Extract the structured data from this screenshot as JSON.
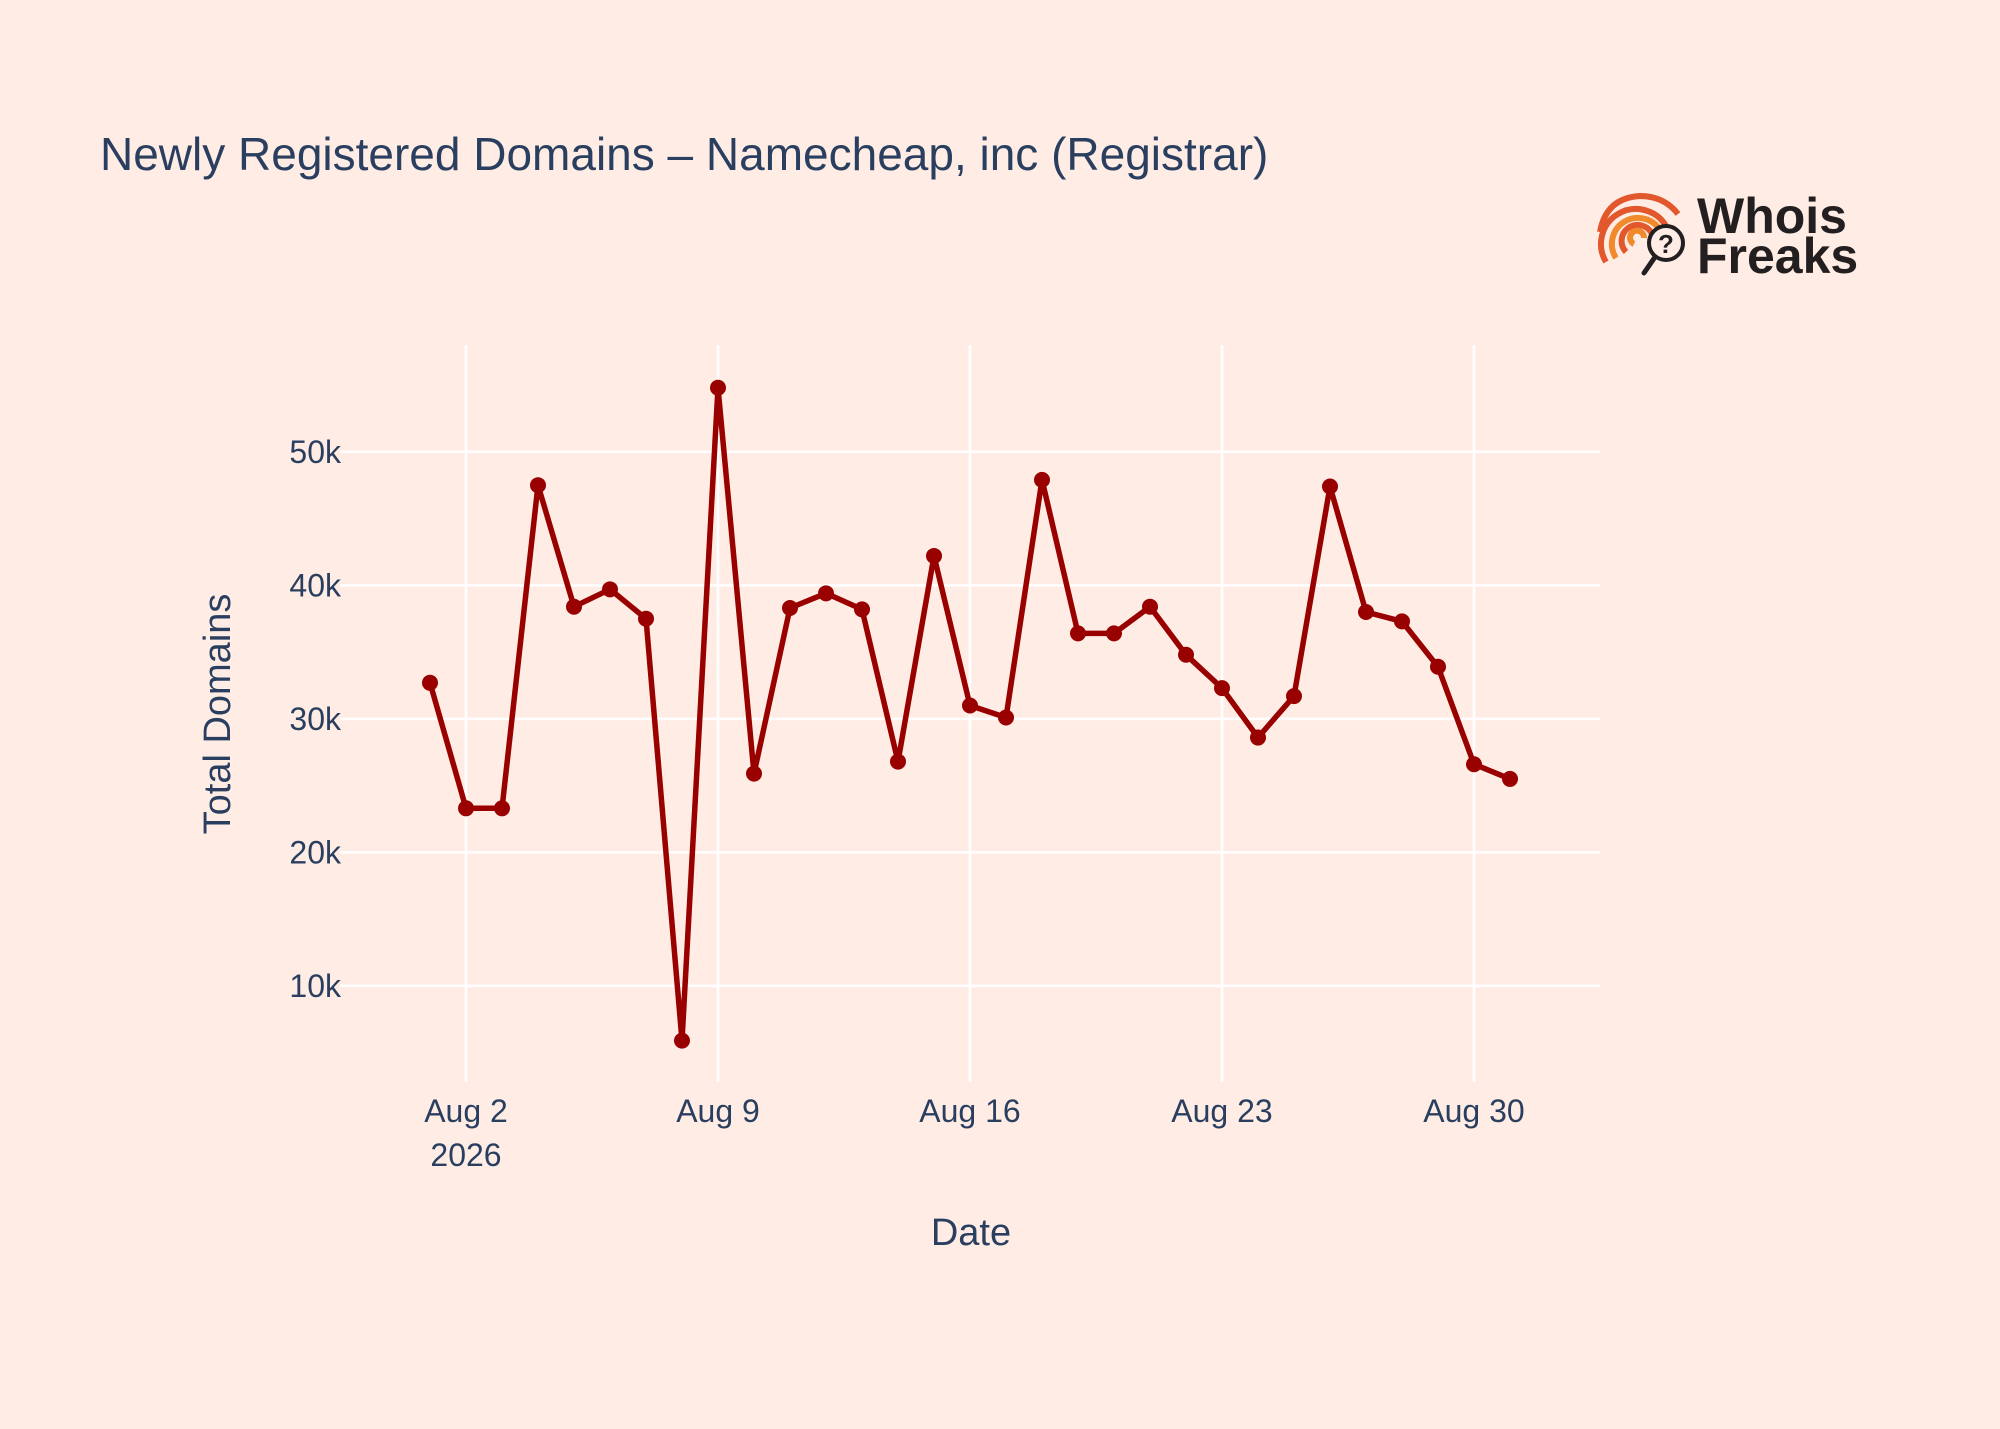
{
  "chart_data": {
    "type": "line",
    "title": "Newly Registered Domains – Namecheap, inc (Registrar)",
    "xlabel": "Date",
    "ylabel": "Total Domains",
    "x_ticks": [
      {
        "date": "2026-08-02",
        "label": "Aug 2",
        "sublabel": "2026"
      },
      {
        "date": "2026-08-09",
        "label": "Aug 9",
        "sublabel": ""
      },
      {
        "date": "2026-08-16",
        "label": "Aug 16",
        "sublabel": ""
      },
      {
        "date": "2026-08-23",
        "label": "Aug 23",
        "sublabel": ""
      },
      {
        "date": "2026-08-30",
        "label": "Aug 30",
        "sublabel": ""
      }
    ],
    "y_ticks": [
      {
        "value": 10000,
        "label": "10k"
      },
      {
        "value": 20000,
        "label": "20k"
      },
      {
        "value": 30000,
        "label": "30k"
      },
      {
        "value": 40000,
        "label": "40k"
      },
      {
        "value": 50000,
        "label": "50k"
      }
    ],
    "xlim": [
      "2026-07-29T12:00",
      "2026-09-02T12:00"
    ],
    "ylim": [
      2800,
      58000
    ],
    "grid": true,
    "series": [
      {
        "color": "#990000",
        "x": [
          "2026-08-01",
          "2026-08-02",
          "2026-08-03",
          "2026-08-04",
          "2026-08-05",
          "2026-08-06",
          "2026-08-07",
          "2026-08-08",
          "2026-08-09",
          "2026-08-10",
          "2026-08-11",
          "2026-08-12",
          "2026-08-13",
          "2026-08-14",
          "2026-08-15",
          "2026-08-16",
          "2026-08-17",
          "2026-08-18",
          "2026-08-19",
          "2026-08-20",
          "2026-08-21",
          "2026-08-22",
          "2026-08-23",
          "2026-08-24",
          "2026-08-25",
          "2026-08-26",
          "2026-08-27",
          "2026-08-28",
          "2026-08-29",
          "2026-08-30",
          "2026-08-31"
        ],
        "y": [
          32700,
          23300,
          23300,
          47500,
          38400,
          39700,
          37500,
          5900,
          54800,
          25900,
          38300,
          39400,
          38200,
          26800,
          42200,
          31000,
          30100,
          47900,
          36400,
          36400,
          38400,
          34800,
          32300,
          28600,
          31700,
          47400,
          38000,
          37300,
          33900,
          26600,
          25500
        ]
      }
    ]
  },
  "logo": {
    "line1": "Whois",
    "line2": "Freaks",
    "colors": [
      "#E2572B",
      "#F08A2C",
      "#231F20"
    ]
  }
}
